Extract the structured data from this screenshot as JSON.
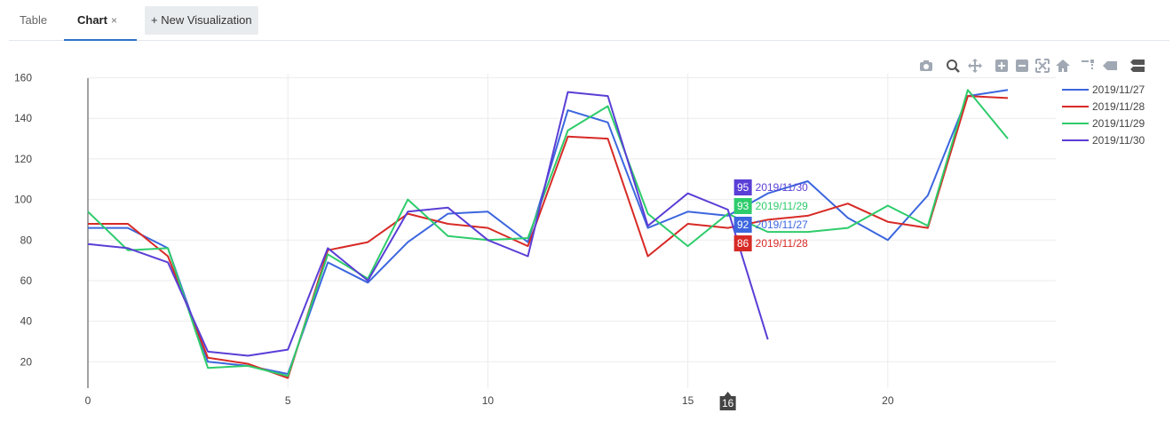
{
  "tabs": {
    "table_label": "Table",
    "chart_label": "Chart",
    "chart_close": "×",
    "new_visualization_label": "+ New Visualization"
  },
  "modebar": {
    "icons": [
      "camera-icon",
      "zoom-icon",
      "pan-icon",
      "zoom-in-icon",
      "zoom-out-icon",
      "autoscale-icon",
      "reset-axes-icon",
      "spike-lines-icon",
      "hover-closest-icon",
      "hover-compare-icon"
    ],
    "icon_color": "#a0a8b3"
  },
  "chart_data": {
    "type": "line",
    "x": [
      0,
      1,
      2,
      3,
      4,
      5,
      6,
      7,
      8,
      9,
      10,
      11,
      12,
      13,
      14,
      15,
      16,
      17,
      18,
      19,
      20,
      21,
      22,
      23
    ],
    "xlim": [
      0,
      24.2
    ],
    "ylim": [
      7,
      162
    ],
    "xticks": [
      0,
      5,
      10,
      15,
      20
    ],
    "yticks": [
      20,
      40,
      60,
      80,
      100,
      120,
      140,
      160
    ],
    "grid": true,
    "legend_position": "top-right",
    "series": [
      {
        "name": "2019/11/27",
        "color": "#3c66de",
        "values": [
          86,
          86,
          76,
          20,
          18,
          14,
          69,
          59,
          79,
          93,
          94,
          79,
          144,
          138,
          86,
          94,
          92,
          103,
          109,
          91,
          80,
          102,
          151,
          154
        ]
      },
      {
        "name": "2019/11/28",
        "color": "#d72a26",
        "values": [
          88,
          88,
          72,
          22,
          19,
          12,
          75,
          79,
          93,
          88,
          86,
          77,
          131,
          130,
          72,
          88,
          86,
          90,
          92,
          98,
          89,
          86,
          151,
          150
        ]
      },
      {
        "name": "2019/11/29",
        "color": "#2ecc6b",
        "values": [
          94,
          75,
          76,
          17,
          18,
          13,
          73,
          61,
          100,
          82,
          80,
          81,
          134,
          146,
          93,
          77,
          93,
          84,
          84,
          86,
          97,
          87,
          154,
          130
        ]
      },
      {
        "name": "2019/11/30",
        "color": "#5a3ed6",
        "values": [
          78,
          76,
          69,
          25,
          23,
          26,
          76,
          60,
          94,
          96,
          80,
          72,
          153,
          151,
          87,
          103,
          95,
          31,
          null,
          null,
          null,
          null,
          null,
          null
        ]
      }
    ],
    "hover": {
      "x": 16,
      "x_label": "16",
      "items": [
        {
          "value": "95",
          "name": "2019/11/30",
          "color": "#5a3ed6"
        },
        {
          "value": "93",
          "name": "2019/11/29",
          "color": "#2ecc6b"
        },
        {
          "value": "92",
          "name": "2019/11/27",
          "color": "#3c66de"
        },
        {
          "value": "86",
          "name": "2019/11/28",
          "color": "#d72a26"
        }
      ]
    }
  }
}
